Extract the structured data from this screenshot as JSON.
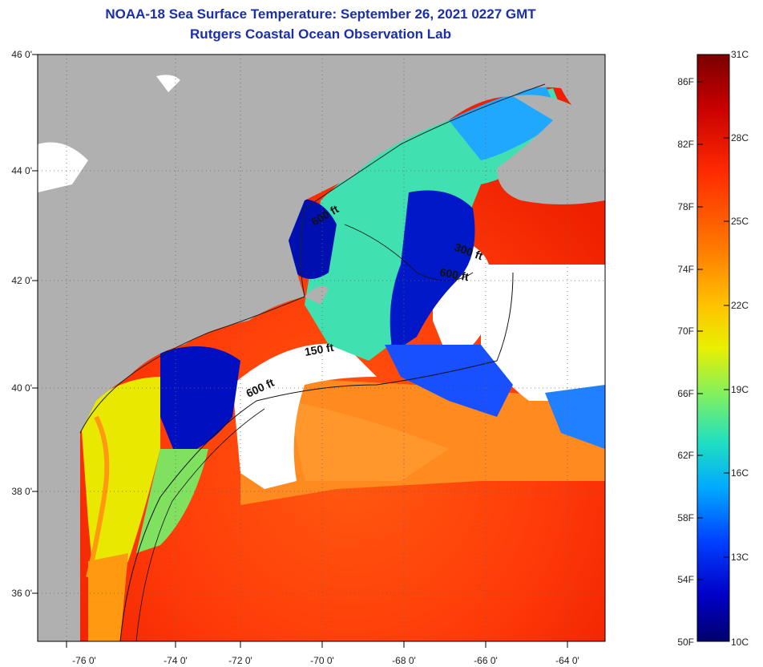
{
  "title_line1": "NOAA-18 Sea Surface Temperature:  September 26, 2021 0227 GMT",
  "title_line2": "Rutgers Coastal Ocean Observation Lab",
  "axes": {
    "lat_ticks": [
      "46 0'",
      "44 0'",
      "42 0'",
      "40 0'",
      "38 0'",
      "36 0'"
    ],
    "lon_ticks": [
      "-76 0'",
      "-74 0'",
      "-72 0'",
      "-70 0'",
      "-68 0'",
      "-66 0'",
      "-64 0'"
    ]
  },
  "depth_contours": [
    "600 ft",
    "300 ft",
    "600 ft",
    "150 ft",
    "600 ft"
  ],
  "colorbar": {
    "fahrenheit": [
      "86F",
      "82F",
      "78F",
      "74F",
      "70F",
      "66F",
      "62F",
      "58F",
      "54F",
      "50F"
    ],
    "celsius": [
      "31C",
      "28C",
      "25C",
      "22C",
      "19C",
      "16C",
      "13C",
      "10C"
    ],
    "colors": [
      "#7a0000",
      "#c80000",
      "#ff2a00",
      "#ff7a00",
      "#ffc400",
      "#e8f000",
      "#80f060",
      "#20e0c0",
      "#00a8ff",
      "#0040ff",
      "#0000c8",
      "#00006e"
    ]
  },
  "colors": {
    "land": "#b0b0b0",
    "cloud": "#ffffff",
    "title": "#1a2fa8",
    "warm_water": "#ff3a10",
    "cool_water": "#20a0ff",
    "cold_water": "#0010c0"
  }
}
